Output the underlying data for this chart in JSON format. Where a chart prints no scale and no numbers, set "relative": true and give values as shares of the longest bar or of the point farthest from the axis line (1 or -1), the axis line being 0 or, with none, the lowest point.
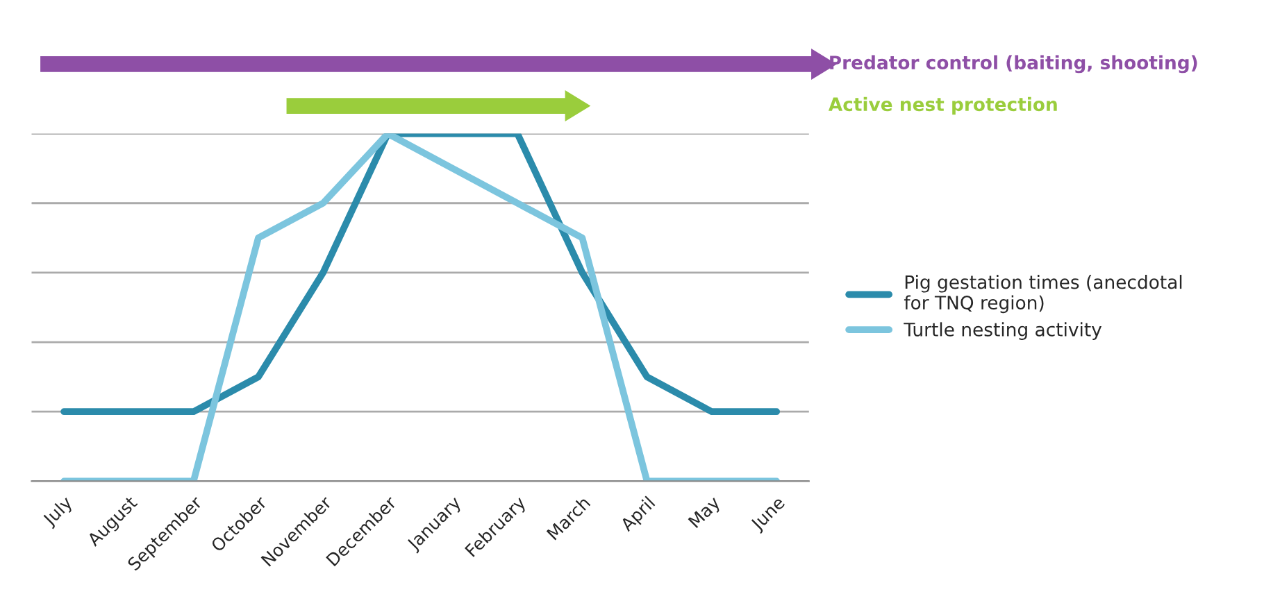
{
  "chart_data": {
    "type": "line",
    "relative": true,
    "categories": [
      "July",
      "August",
      "September",
      "October",
      "November",
      "December",
      "January",
      "February",
      "March",
      "April",
      "May",
      "June"
    ],
    "series": [
      {
        "name": "Pig gestation times (anecdotal for TNQ region)",
        "color": "#2b8bab",
        "values": [
          0.2,
          0.2,
          0.2,
          0.3,
          0.6,
          1.0,
          1.0,
          1.0,
          0.6,
          0.3,
          0.2,
          0.2
        ]
      },
      {
        "name": "Turtle nesting activity",
        "color": "#7cc5de",
        "values": [
          0,
          0,
          0,
          0.7,
          0.8,
          1.0,
          0.9,
          0.8,
          0.7,
          0,
          0,
          0
        ]
      }
    ],
    "annotations": [
      "Predator control (baiting, shooting)",
      "Active nest protection"
    ],
    "grid": "y",
    "legend": "right",
    "marker": "none",
    "line_style": "solid"
  }
}
